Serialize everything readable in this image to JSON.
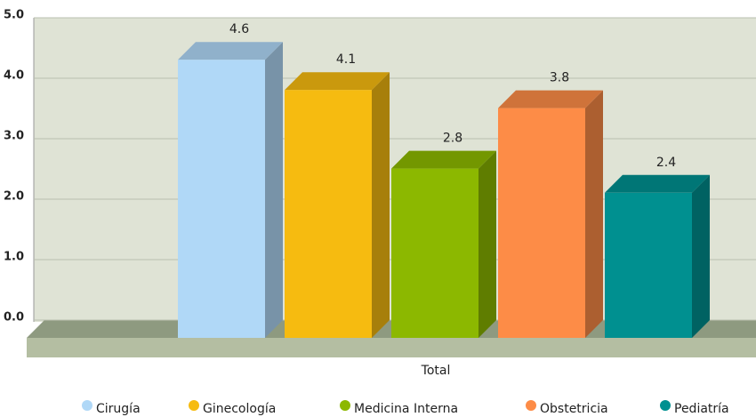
{
  "chart_data": {
    "type": "bar3d",
    "categories": [
      "Total"
    ],
    "series": [
      {
        "name": "Cirugía",
        "color": "#b0d8f7",
        "values": [
          4.6
        ]
      },
      {
        "name": "Ginecología",
        "color": "#f6bb10",
        "values": [
          4.1
        ]
      },
      {
        "name": "Medicina Interna",
        "color": "#8cb800",
        "values": [
          2.8
        ]
      },
      {
        "name": "Obstetricia",
        "color": "#fd8c47",
        "values": [
          3.8
        ]
      },
      {
        "name": "Pediatría",
        "color": "#009090",
        "values": [
          2.4
        ]
      }
    ],
    "ylim": [
      0,
      5
    ],
    "yticks": [
      {
        "value": 0,
        "label": "0.0"
      },
      {
        "value": 1,
        "label": "1.0"
      },
      {
        "value": 2,
        "label": "2.0"
      },
      {
        "value": 3,
        "label": "3.0"
      },
      {
        "value": 4,
        "label": "4.0"
      },
      {
        "value": 5,
        "label": "5.0"
      }
    ],
    "grid": true,
    "legend": "bottom"
  }
}
